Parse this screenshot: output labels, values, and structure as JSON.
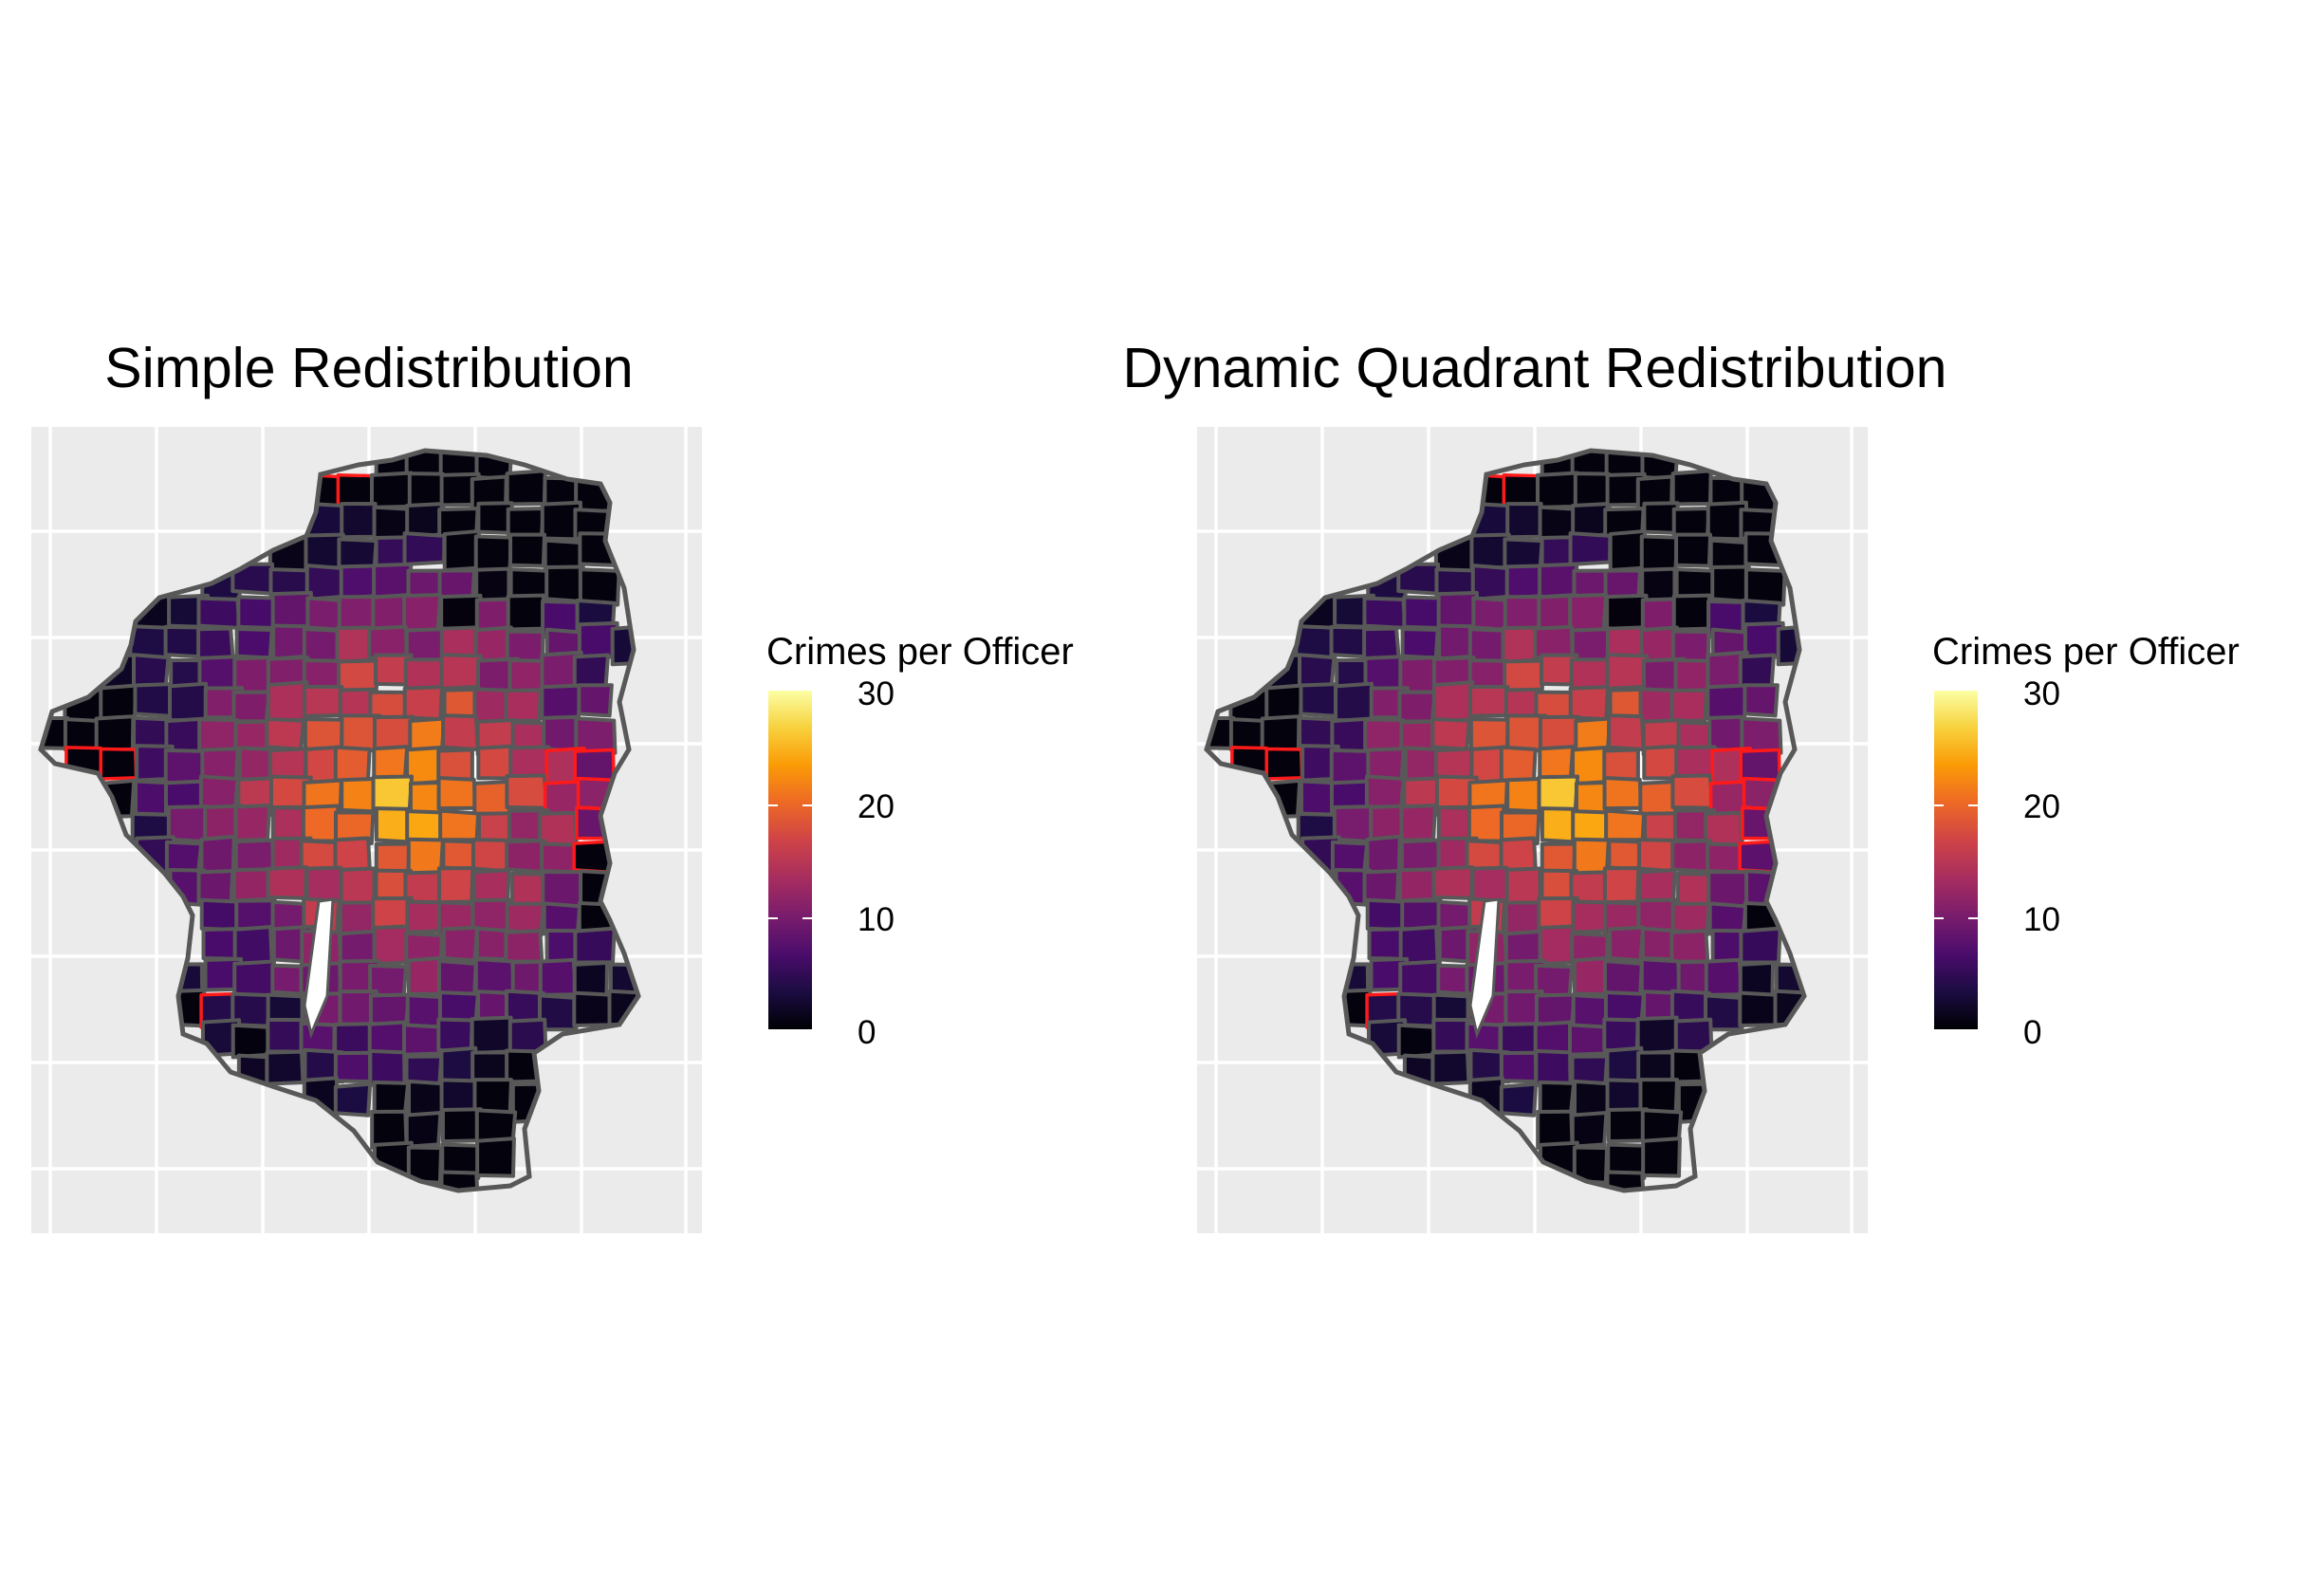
{
  "panels": [
    {
      "title": "Simple Redistribution",
      "legend_title": "Crimes per Officer",
      "legend_ticks": [
        "30",
        "20",
        "10",
        "0"
      ]
    },
    {
      "title": "Dynamic Quadrant Redistribution",
      "legend_title": "Crimes per Officer",
      "legend_ticks": [
        "30",
        "20",
        "10",
        "0"
      ]
    }
  ],
  "color_scale": {
    "name": "inferno",
    "min": 0,
    "max": 30,
    "stops": [
      "#000004",
      "#1b0c41",
      "#4a0c6b",
      "#781c6d",
      "#a52c60",
      "#cf4446",
      "#ed6925",
      "#fb9b06",
      "#f7d13d",
      "#fcffa4"
    ],
    "highlight_border": "#ff1a1a",
    "region_border": "#585858",
    "panel_background": "#ebebeb"
  }
}
